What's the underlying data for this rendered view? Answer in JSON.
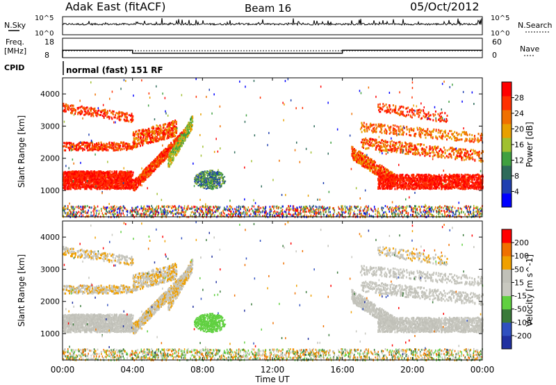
{
  "header": {
    "station": "Adak East (fitACF)",
    "beam": "Beam 16",
    "date": "05/Oct/2012"
  },
  "nsky_panel": {
    "left_label": "N.Sky",
    "right_label": "N.Search",
    "left_ticks": [
      "10^5",
      "10^0"
    ],
    "right_ticks": [
      "10^5",
      "10^0"
    ]
  },
  "freq_panel": {
    "left_label_1": "Freq.",
    "left_label_2": "[MHz]",
    "right_label": "Nave",
    "left_ticks": [
      "18",
      "8"
    ],
    "right_ticks": [
      "60",
      "0"
    ],
    "freq_steps": [
      {
        "t0": 0,
        "t1": 4,
        "mhz": 11.8
      },
      {
        "t0": 4,
        "t1": 16,
        "mhz": 10.3
      },
      {
        "t0": 16,
        "t1": 24,
        "mhz": 11.8
      }
    ]
  },
  "cpid": {
    "label": "CPID",
    "mode": "normal (fast) 151 RF"
  },
  "x_axis": {
    "title": "Time UT",
    "ticks": [
      "00:00",
      "04:00",
      "08:00",
      "12:00",
      "16:00",
      "20:00",
      "00:00"
    ],
    "tick_hours": [
      0,
      4,
      8,
      12,
      16,
      20,
      24
    ]
  },
  "chart_data": [
    {
      "type": "heatmap",
      "title": "",
      "xlabel": "Time UT",
      "ylabel": "Slant Range [km]",
      "xlim_hours": [
        0,
        24
      ],
      "ylim_km": [
        180,
        4500
      ],
      "y_ticks": [
        "1000",
        "2000",
        "3000",
        "4000"
      ],
      "y_tick_values": [
        1000,
        2000,
        3000,
        4000
      ],
      "colorbar_label": "Power [dB]",
      "colorbar_ticks": [
        "28",
        "24",
        "20",
        "16",
        "12",
        "8",
        "4"
      ],
      "colorbar_tick_values": [
        28,
        24,
        20,
        16,
        12,
        8,
        4
      ],
      "colorbar_range": [
        0,
        32
      ],
      "colorbar_colors": [
        "#0000ff",
        "#2040b0",
        "#2e6b5a",
        "#40a040",
        "#a0c030",
        "#e8a000",
        "#f07000",
        "#ff3000",
        "#ff0000"
      ]
    },
    {
      "type": "heatmap",
      "title": "",
      "xlabel": "Time UT",
      "ylabel": "Slant Range [km]",
      "xlim_hours": [
        0,
        24
      ],
      "ylim_km": [
        180,
        4500
      ],
      "y_ticks": [
        "1000",
        "2000",
        "3000",
        "4000"
      ],
      "y_tick_values": [
        1000,
        2000,
        3000,
        4000
      ],
      "colorbar_label": "Velocity [m s^-1]",
      "colorbar_ticks": [
        "200",
        "100",
        "50",
        "15",
        "-15",
        "-50",
        "-100",
        "-200"
      ],
      "colorbar_colors": [
        "#2030a0",
        "#3050c0",
        "#3a7a3a",
        "#60d040",
        "#c8c8c0",
        "#c0c0b8",
        "#f0a000",
        "#f07000",
        "#ff0000"
      ]
    }
  ]
}
